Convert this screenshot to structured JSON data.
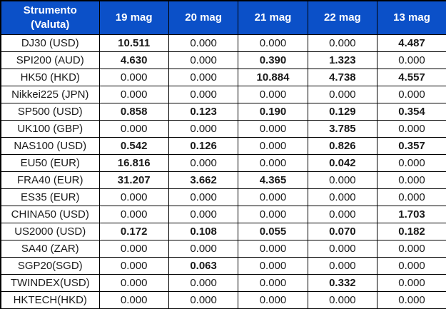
{
  "table": {
    "header": {
      "instrument_line1": "Strumento",
      "instrument_line2": "(Valuta)",
      "dates": [
        "19 mag",
        "20 mag",
        "21 mag",
        "22 mag",
        "13 mag"
      ]
    },
    "zero_string": "0.000",
    "rows": [
      {
        "instrument": "DJ30 (USD)",
        "values": [
          "10.511",
          "0.000",
          "0.000",
          "0.000",
          "4.487"
        ]
      },
      {
        "instrument": "SPI200 (AUD)",
        "values": [
          "4.630",
          "0.000",
          "0.390",
          "1.323",
          "0.000"
        ]
      },
      {
        "instrument": "HK50 (HKD)",
        "values": [
          "0.000",
          "0.000",
          "10.884",
          "4.738",
          "4.557"
        ]
      },
      {
        "instrument": "Nikkei225 (JPN)",
        "values": [
          "0.000",
          "0.000",
          "0.000",
          "0.000",
          "0.000"
        ]
      },
      {
        "instrument": "SP500 (USD)",
        "values": [
          "0.858",
          "0.123",
          "0.190",
          "0.129",
          "0.354"
        ]
      },
      {
        "instrument": "UK100 (GBP)",
        "values": [
          "0.000",
          "0.000",
          "0.000",
          "3.785",
          "0.000"
        ]
      },
      {
        "instrument": "NAS100 (USD)",
        "values": [
          "0.542",
          "0.126",
          "0.000",
          "0.826",
          "0.357"
        ]
      },
      {
        "instrument": "EU50 (EUR)",
        "values": [
          "16.816",
          "0.000",
          "0.000",
          "0.042",
          "0.000"
        ]
      },
      {
        "instrument": "FRA40 (EUR)",
        "values": [
          "31.207",
          "3.662",
          "4.365",
          "0.000",
          "0.000"
        ]
      },
      {
        "instrument": "ES35 (EUR)",
        "values": [
          "0.000",
          "0.000",
          "0.000",
          "0.000",
          "0.000"
        ]
      },
      {
        "instrument": "CHINA50 (USD)",
        "values": [
          "0.000",
          "0.000",
          "0.000",
          "0.000",
          "1.703"
        ]
      },
      {
        "instrument": "US2000 (USD)",
        "values": [
          "0.172",
          "0.108",
          "0.055",
          "0.070",
          "0.182"
        ]
      },
      {
        "instrument": "SA40 (ZAR)",
        "values": [
          "0.000",
          "0.000",
          "0.000",
          "0.000",
          "0.000"
        ]
      },
      {
        "instrument": "SGP20(SGD)",
        "values": [
          "0.000",
          "0.063",
          "0.000",
          "0.000",
          "0.000"
        ]
      },
      {
        "instrument": "TWINDEX(USD)",
        "values": [
          "0.000",
          "0.000",
          "0.000",
          "0.332",
          "0.000"
        ]
      },
      {
        "instrument": "HKTECH(HKD)",
        "values": [
          "0.000",
          "0.000",
          "0.000",
          "0.000",
          "0.000"
        ]
      }
    ],
    "colors": {
      "header_bg": "#0b50c8",
      "header_text": "#ffffff",
      "nonzero_value": "#fa0000",
      "zero_value": "#1a1a1a",
      "border": "#000000",
      "row_bg": "#ffffff"
    }
  }
}
